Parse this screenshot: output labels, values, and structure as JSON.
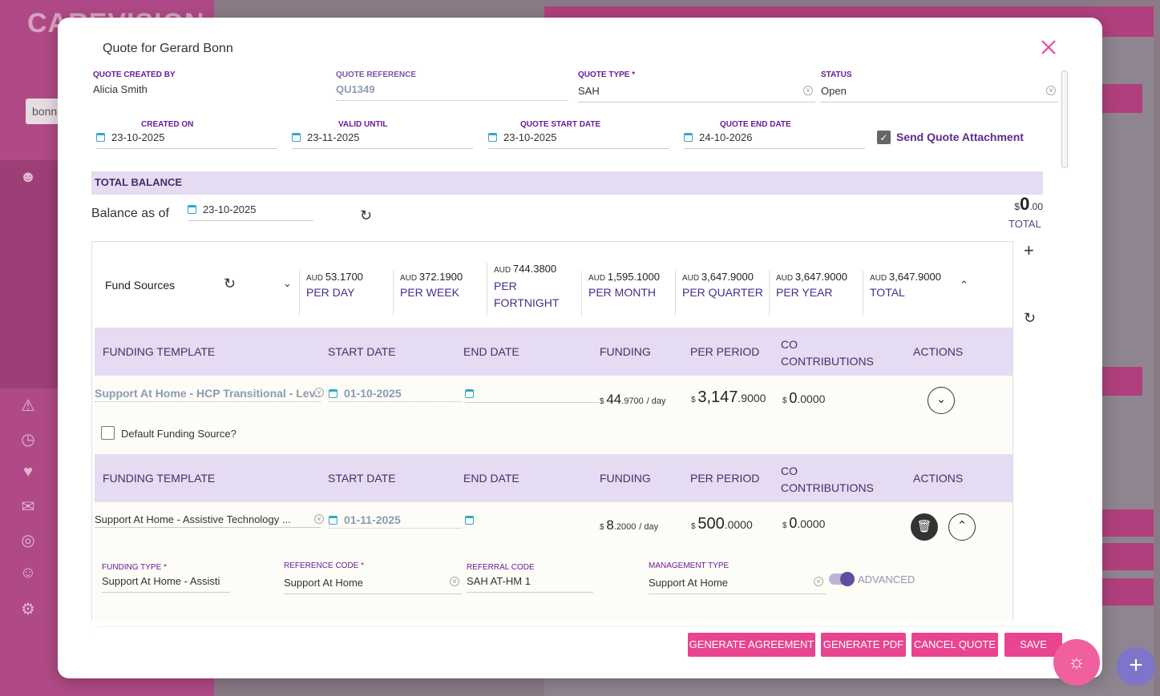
{
  "background": {
    "logo_text": "CAREVISION",
    "search_value": "bonn"
  },
  "modal": {
    "title": "Quote for Gerard Bonn",
    "fields": {
      "created_by_label": "QUOTE CREATED BY",
      "created_by_value": "Alicia Smith",
      "reference_label": "QUOTE REFERENCE",
      "reference_value": "QU1349",
      "type_label": "QUOTE TYPE *",
      "type_value": "SAH",
      "status_label": "STATUS",
      "status_value": "Open",
      "created_on_label": "CREATED ON",
      "created_on_value": "23-10-2025",
      "valid_until_label": "VALID UNTIL",
      "valid_until_value": "23-11-2025",
      "start_label": "QUOTE START DATE",
      "start_value": "23-10-2025",
      "end_label": "QUOTE END DATE",
      "end_value": "24-10-2026",
      "send_attachment_label": "Send Quote Attachment"
    },
    "total_balance": {
      "section_label": "TOTAL BALANCE",
      "balance_as_of_label": "Balance as of",
      "balance_date": "23-10-2025",
      "currency": "$",
      "amount_int": "0",
      "amount_dec": ".00",
      "total_label": "TOTAL"
    },
    "fund_sources": {
      "title": "Fund Sources",
      "periods": [
        {
          "cur": "AUD",
          "value": "53.1700",
          "label": "PER DAY"
        },
        {
          "cur": "AUD",
          "value": "372.1900",
          "label": "PER WEEK"
        },
        {
          "cur": "AUD",
          "value": "744.3800",
          "label": "PER FORTNIGHT"
        },
        {
          "cur": "AUD",
          "value": "1,595.1000",
          "label": "PER MONTH"
        },
        {
          "cur": "AUD",
          "value": "3,647.9000",
          "label": "PER QUARTER"
        },
        {
          "cur": "AUD",
          "value": "3,647.9000",
          "label": "PER YEAR"
        },
        {
          "cur": "AUD",
          "value": "3,647.9000",
          "label": "TOTAL"
        }
      ]
    },
    "table_headers": {
      "template": "FUNDING TEMPLATE",
      "start": "START DATE",
      "end": "END DATE",
      "funding": "FUNDING",
      "per_period": "PER PERIOD",
      "co_contributions": "CO CONTRIBUTIONS",
      "actions": "ACTIONS"
    },
    "rows": [
      {
        "template": "Support At Home - HCP Transitional - Lev...",
        "start": "01-10-2025",
        "funding_int": "44",
        "funding_dec": ".9700",
        "funding_unit": "/ day",
        "per_period_int": "3,147",
        "per_period_dec": ".9000",
        "co_int": "0",
        "co_dec": ".0000",
        "default_label": "Default Funding Source?"
      },
      {
        "template": "Support At Home - Assistive Technology ...",
        "start": "01-11-2025",
        "funding_int": "8",
        "funding_dec": ".2000",
        "funding_unit": "/ day",
        "per_period_int": "500",
        "per_period_dec": ".0000",
        "co_int": "0",
        "co_dec": ".0000"
      }
    ],
    "detail": {
      "funding_type_label": "FUNDING TYPE *",
      "funding_type_value": "Support At Home - Assisti",
      "reference_code_label": "REFERENCE CODE *",
      "reference_code_value": "Support At Home",
      "referral_code_label": "REFERRAL CODE",
      "referral_code_value": "SAH AT-HM 1",
      "management_type_label": "MANAGEMENT TYPE",
      "management_type_value": "Support At Home",
      "advanced_label": "ADVANCED"
    },
    "buttons": {
      "generate_agreement": "GENERATE AGREEMENT",
      "generate_pdf": "GENERATE PDF",
      "cancel_quote": "CANCEL QUOTE",
      "save": "SAVE"
    }
  },
  "colors": {
    "accent": "#e8448f",
    "header_bg": "#e5dbf2",
    "label": "#6a1b9a"
  }
}
